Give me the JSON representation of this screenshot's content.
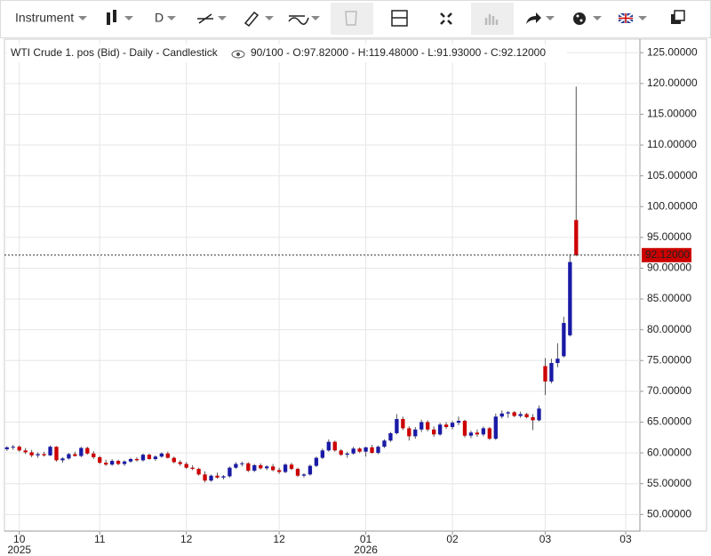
{
  "toolbar": {
    "instrument": "Instrument",
    "interval": "D"
  },
  "chart_data": {
    "type": "candlestick",
    "title": "WTI Crude 1. pos (Bid) - Daily - Candlestick",
    "subtitle": "90/100 - O:97.82000 - H:119.48000 - L:91.93000 - C:92.12000",
    "up_color": "#1a1aa6",
    "down_color": "#cc0000",
    "open": [
      60.6,
      60.9,
      61.0,
      60.4,
      60.1,
      59.6,
      59.8,
      59.6,
      61.0,
      58.8,
      59.1,
      59.8,
      59.5,
      60.8,
      59.9,
      59.3,
      58.4,
      58.1,
      58.7,
      58.2,
      58.6,
      59.0,
      58.8,
      59.7,
      59.0,
      59.4,
      59.9,
      59.2,
      58.5,
      58.2,
      57.6,
      57.4,
      56.5,
      55.5,
      56.3,
      56.0,
      56.2,
      57.6,
      58.2,
      58.3,
      57.1,
      58.0,
      57.5,
      57.8,
      57.2,
      56.9,
      58.1,
      57.4,
      56.3,
      56.5,
      57.9,
      59.2,
      60.4,
      61.8,
      60.4,
      59.7,
      59.9,
      60.7,
      60.2,
      60.9,
      60.0,
      61.0,
      62.0,
      63.2,
      65.5,
      64.0,
      62.7,
      63.8,
      65.0,
      63.8,
      63.0,
      64.6,
      64.2,
      64.9,
      65.2,
      62.8,
      63.3,
      63.0,
      64.0,
      62.3,
      65.9,
      66.4,
      66.6,
      66.0,
      66.3,
      65.8,
      65.3,
      74.1,
      71.6,
      74.6,
      75.7,
      79.1,
      97.82
    ],
    "high": [
      61.1,
      61.3,
      61.2,
      60.8,
      60.5,
      60.1,
      60.2,
      61.2,
      61.1,
      59.3,
      60.0,
      60.2,
      61.0,
      61.0,
      60.3,
      59.5,
      58.9,
      59.0,
      58.9,
      58.8,
      59.2,
      59.3,
      59.9,
      59.9,
      59.6,
      60.1,
      60.2,
      59.4,
      58.8,
      58.5,
      58.0,
      57.6,
      57.0,
      56.5,
      56.8,
      56.4,
      57.8,
      58.5,
      58.6,
      58.5,
      58.2,
      58.3,
      58.0,
      58.2,
      57.6,
      58.3,
      58.4,
      57.6,
      56.7,
      58.1,
      59.4,
      60.7,
      62.2,
      62.0,
      60.6,
      60.2,
      61.0,
      60.9,
      61.0,
      61.3,
      61.2,
      62.2,
      63.4,
      66.3,
      65.9,
      64.3,
      64.2,
      65.4,
      65.3,
      64.3,
      64.9,
      65.0,
      65.2,
      65.9,
      65.4,
      63.6,
      63.8,
      64.3,
      64.2,
      66.4,
      66.9,
      66.8,
      66.8,
      66.7,
      66.5,
      66.3,
      67.7,
      75.4,
      75.3,
      77.8,
      82.1,
      92.3,
      119.48
    ],
    "low": [
      60.3,
      60.5,
      60.2,
      59.8,
      59.3,
      59.2,
      59.4,
      59.5,
      58.6,
      58.4,
      58.9,
      59.4,
      59.3,
      59.7,
      59.0,
      58.2,
      57.9,
      57.9,
      58.0,
      57.9,
      58.4,
      58.6,
      58.6,
      58.9,
      58.7,
      59.2,
      59.1,
      58.3,
      57.9,
      57.4,
      57.2,
      56.3,
      55.2,
      55.3,
      55.8,
      55.7,
      56.0,
      57.4,
      57.8,
      56.9,
      56.9,
      57.3,
      57.2,
      57.0,
      56.6,
      56.7,
      57.2,
      56.1,
      56.0,
      56.3,
      57.7,
      59.0,
      60.2,
      60.2,
      59.5,
      59.2,
      59.7,
      60.0,
      59.4,
      59.9,
      59.8,
      60.8,
      61.8,
      63.0,
      63.7,
      62.0,
      62.3,
      63.4,
      63.5,
      62.6,
      62.8,
      63.9,
      63.8,
      64.5,
      62.5,
      62.4,
      62.6,
      62.7,
      62.1,
      62.1,
      65.6,
      65.7,
      65.8,
      65.7,
      65.6,
      63.7,
      65.1,
      69.4,
      71.3,
      73.9,
      75.5,
      78.9,
      91.93
    ],
    "close": [
      60.9,
      61.0,
      60.4,
      60.1,
      59.6,
      59.8,
      59.6,
      61.0,
      58.8,
      59.1,
      59.8,
      59.5,
      60.8,
      59.9,
      59.3,
      58.4,
      58.1,
      58.7,
      58.2,
      58.6,
      59.0,
      58.8,
      59.7,
      59.0,
      59.4,
      59.9,
      59.2,
      58.5,
      58.2,
      57.6,
      57.4,
      56.5,
      55.5,
      56.3,
      56.0,
      56.2,
      57.6,
      58.2,
      58.3,
      57.1,
      58.0,
      57.5,
      57.8,
      57.2,
      56.9,
      58.1,
      57.4,
      56.3,
      56.5,
      57.9,
      59.2,
      60.4,
      61.8,
      60.4,
      59.7,
      59.9,
      60.7,
      60.2,
      60.9,
      60.0,
      61.0,
      62.0,
      63.2,
      65.5,
      64.0,
      62.7,
      63.8,
      65.0,
      63.8,
      63.0,
      64.6,
      64.2,
      64.9,
      65.2,
      62.8,
      63.3,
      63.0,
      64.0,
      62.3,
      65.9,
      66.4,
      66.6,
      66.0,
      66.3,
      65.8,
      65.3,
      67.2,
      71.6,
      74.6,
      75.3,
      81.1,
      91.0,
      92.12
    ],
    "last_price": {
      "value": 92.12,
      "label": "92.12000"
    },
    "xlim": [
      -0.4,
      102.3
    ],
    "xticks": [
      {
        "value": 2,
        "label": "10"
      },
      {
        "value": 15,
        "label": "11"
      },
      {
        "value": 29,
        "label": "12"
      },
      {
        "value": 44,
        "label": "12"
      },
      {
        "value": 58,
        "label": "01"
      },
      {
        "value": 72,
        "label": "02"
      },
      {
        "value": 87,
        "label": "03"
      },
      {
        "value": 100,
        "label": "03"
      }
    ],
    "year_labels": [
      {
        "value": 2,
        "label": "2025"
      },
      {
        "value": 58,
        "label": "2026"
      }
    ],
    "ylim": [
      47.3,
      127.2
    ],
    "yticks": [
      {
        "value": 50,
        "label": "50.00000"
      },
      {
        "value": 55,
        "label": "55.00000"
      },
      {
        "value": 60,
        "label": "60.00000"
      },
      {
        "value": 65,
        "label": "65.00000"
      },
      {
        "value": 70,
        "label": "70.00000"
      },
      {
        "value": 75,
        "label": "75.00000"
      },
      {
        "value": 80,
        "label": "80.00000"
      },
      {
        "value": 85,
        "label": "85.00000"
      },
      {
        "value": 90,
        "label": "90.00000"
      },
      {
        "value": 95,
        "label": "95.00000"
      },
      {
        "value": 100,
        "label": "100.00000"
      },
      {
        "value": 105,
        "label": "105.00000"
      },
      {
        "value": 110,
        "label": "110.00000"
      },
      {
        "value": 115,
        "label": "115.00000"
      },
      {
        "value": 120,
        "label": "120.00000"
      },
      {
        "value": 125,
        "label": "125.00000"
      }
    ],
    "grid": true
  }
}
